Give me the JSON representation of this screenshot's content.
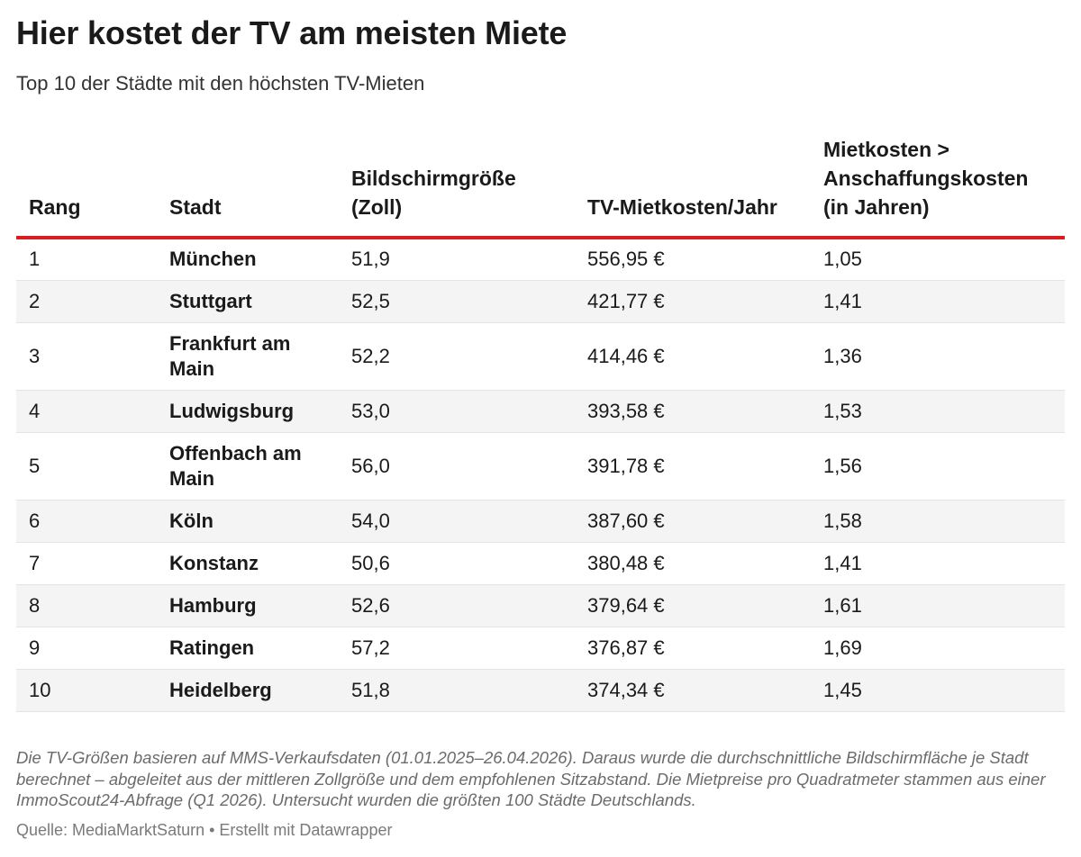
{
  "title": "Hier kostet der TV am meisten Miete",
  "subtitle": "Top 10 der Städte mit den höchsten TV-Mieten",
  "colors": {
    "rule": "#d81e1e",
    "stripe": "#f4f4f4"
  },
  "chart_data": {
    "type": "table",
    "title": "Hier kostet der TV am meisten Miete",
    "subtitle": "Top 10 der Städte mit den höchsten TV-Mieten",
    "columns": [
      "Rang",
      "Stadt",
      "Bildschirmgröße (Zoll)",
      "TV-Mietkosten/Jahr",
      "Mietkosten > Anschaffungskosten (in Jahren)"
    ],
    "rows": [
      [
        "1",
        "München",
        "51,9",
        "556,95 €",
        "1,05"
      ],
      [
        "2",
        "Stuttgart",
        "52,5",
        "421,77 €",
        "1,41"
      ],
      [
        "3",
        "Frankfurt am Main",
        "52,2",
        "414,46 €",
        "1,36"
      ],
      [
        "4",
        "Ludwigsburg",
        "53,0",
        "393,58 €",
        "1,53"
      ],
      [
        "5",
        "Offenbach am Main",
        "56,0",
        "391,78 €",
        "1,56"
      ],
      [
        "6",
        "Köln",
        "54,0",
        "387,60 €",
        "1,58"
      ],
      [
        "7",
        "Konstanz",
        "50,6",
        "380,48 €",
        "1,41"
      ],
      [
        "8",
        "Hamburg",
        "52,6",
        "379,64 €",
        "1,61"
      ],
      [
        "9",
        "Ratingen",
        "57,2",
        "376,87 €",
        "1,69"
      ],
      [
        "10",
        "Heidelberg",
        "51,8",
        "374,34 €",
        "1,45"
      ]
    ]
  },
  "note": "Die TV-Größen basieren auf MMS-Verkaufsdaten (01.01.2025–26.04.2026). Daraus wurde die durchschnittliche Bildschirmfläche je Stadt berechnet – abgeleitet aus der mittleren Zollgröße und dem empfohlenen Sitzabstand. Die Mietpreise pro Quadratmeter stammen aus einer ImmoScout24-Abfrage (Q1 2026). Untersucht wurden die größten 100 Städte Deutschlands.",
  "footer": "Quelle: MediaMarktSaturn • Erstellt mit Datawrapper"
}
